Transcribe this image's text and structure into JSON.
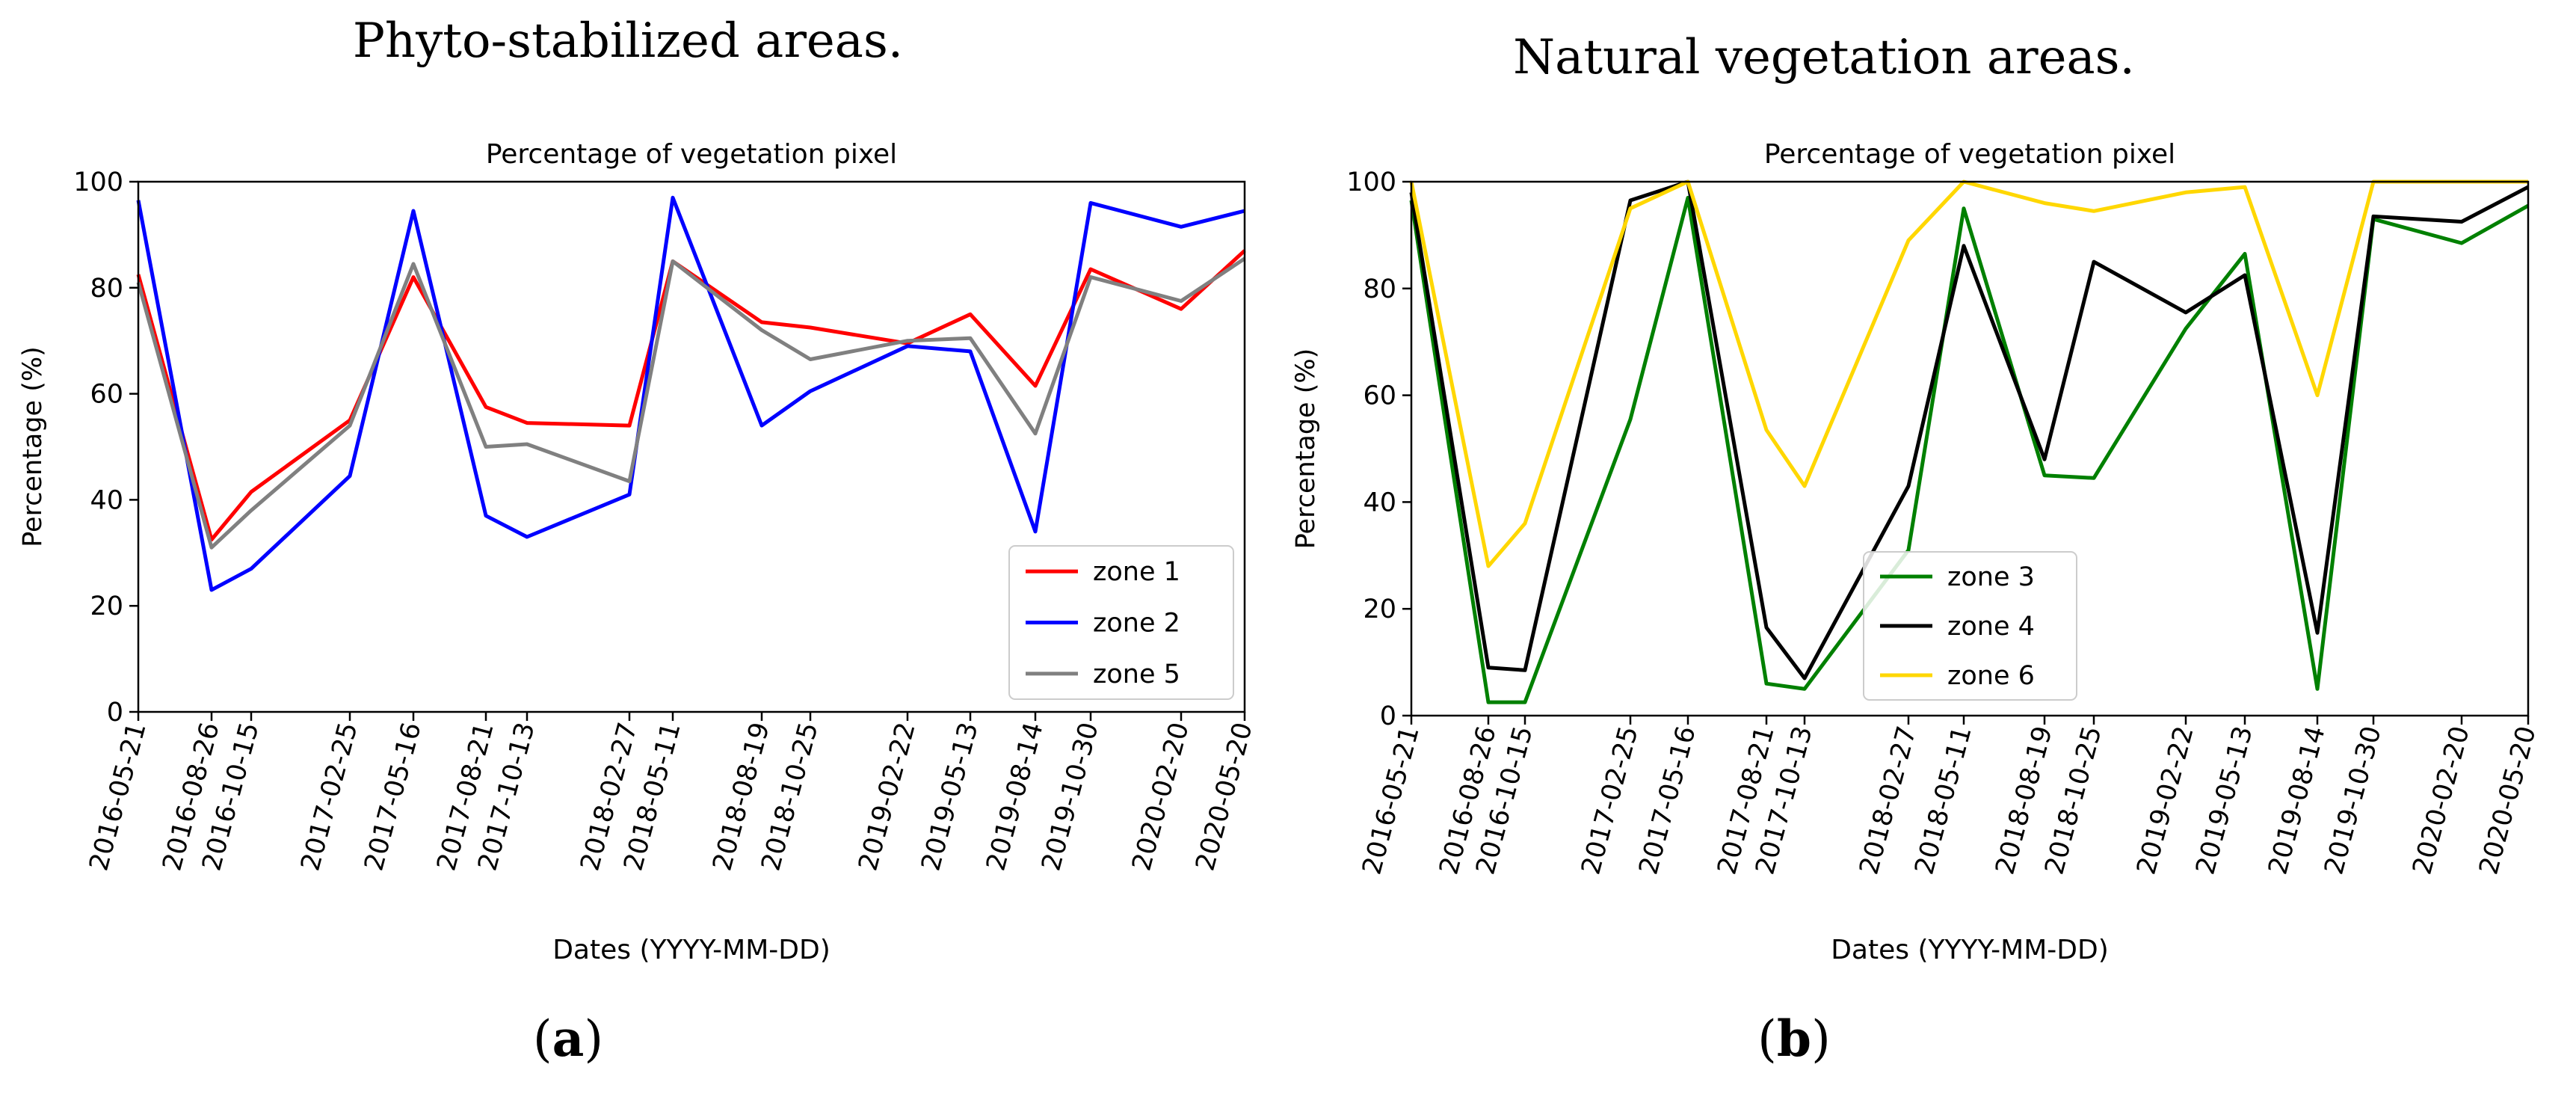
{
  "panels": [
    {
      "heading": "Phyto-stabilized areas.",
      "label_letter": "a"
    },
    {
      "heading": "Natural vegetation areas.",
      "label_letter": "b"
    }
  ],
  "chart_data": [
    {
      "type": "line",
      "title": "Percentage of vegetation pixel",
      "xlabel": "Dates (YYYY-MM-DD)",
      "ylabel": "Percentage (%)",
      "ylim": [
        0,
        100
      ],
      "yticks": [
        0,
        20,
        40,
        60,
        80,
        100
      ],
      "grid": false,
      "legend_position": "lower-right",
      "x": [
        "2016-05-21",
        "2016-08-26",
        "2016-10-15",
        "2017-02-25",
        "2017-05-16",
        "2017-08-21",
        "2017-10-13",
        "2018-02-27",
        "2018-05-11",
        "2018-08-19",
        "2018-10-25",
        "2019-02-22",
        "2019-05-13",
        "2019-08-14",
        "2019-10-30",
        "2020-02-20",
        "2020-05-20"
      ],
      "x_tick_labels": [
        "2016-05-21",
        "2016-08-26",
        "2016-10-15",
        "2017-02-25",
        "2017-05-16",
        "2017-08-21",
        "2017-10-13",
        "2018-02-27",
        "2018-05-11",
        "2018-08-19",
        "2018-10-25",
        "2019-02-22",
        "2019-05-13",
        "2019-08-14",
        "2019-10-30",
        "2020-02-20",
        "2020-05-20"
      ],
      "series": [
        {
          "name": "zone 1",
          "color": "#ff0000",
          "values": [
            82.5,
            32.5,
            41.5,
            55,
            82,
            57.5,
            54.5,
            54,
            85,
            73.5,
            72.5,
            69.5,
            75,
            61.5,
            83.5,
            76,
            87
          ]
        },
        {
          "name": "zone 2",
          "color": "#0000ff",
          "values": [
            96.5,
            23,
            27,
            44.5,
            94.5,
            37,
            33,
            41,
            97,
            54,
            60.5,
            69,
            68,
            34,
            96,
            91.5,
            94.5
          ]
        },
        {
          "name": "zone 5",
          "color": "#808080",
          "values": [
            81,
            31,
            38,
            54,
            84.5,
            50,
            50.5,
            43.5,
            85,
            72,
            66.5,
            70,
            70.5,
            52.5,
            82,
            77.5,
            85.5
          ]
        }
      ]
    },
    {
      "type": "line",
      "title": "Percentage of vegetation pixel",
      "xlabel": "Dates (YYYY-MM-DD)",
      "ylabel": "Percentage (%)",
      "ylim": [
        0,
        100
      ],
      "yticks": [
        0,
        20,
        40,
        60,
        80,
        100
      ],
      "grid": false,
      "legend_position": "lower-center",
      "x": [
        "2016-05-21",
        "2016-08-26",
        "2016-10-15",
        "2017-02-25",
        "2017-05-16",
        "2017-08-21",
        "2017-10-13",
        "2018-02-27",
        "2018-05-11",
        "2018-08-19",
        "2018-10-25",
        "2019-02-22",
        "2019-05-13",
        "2019-08-14",
        "2019-10-30",
        "2020-02-20",
        "2020-05-20"
      ],
      "x_tick_labels": [
        "2016-05-21",
        "2016-08-26",
        "2016-10-15",
        "2017-02-25",
        "2017-05-16",
        "2017-08-21",
        "2017-10-13",
        "2018-02-27",
        "2018-05-11",
        "2018-08-19",
        "2018-10-25",
        "2019-02-22",
        "2019-05-13",
        "2019-08-14",
        "2019-10-30",
        "2020-02-20",
        "2020-05-20"
      ],
      "series": [
        {
          "name": "zone 3",
          "color": "#008000",
          "values": [
            96.5,
            2.5,
            2.5,
            55.5,
            97,
            6,
            5,
            31,
            95,
            45,
            44.5,
            72.5,
            86.5,
            5,
            93,
            88.5,
            95.5
          ]
        },
        {
          "name": "zone 4",
          "color": "#000000",
          "values": [
            98,
            9,
            8.5,
            96.5,
            100,
            16.5,
            7,
            43,
            88,
            48,
            85,
            75.5,
            82.5,
            15.5,
            93.5,
            92.5,
            99
          ]
        },
        {
          "name": "zone 6",
          "color": "#ffd700",
          "values": [
            100,
            28,
            36,
            95,
            100,
            53.5,
            43,
            89,
            100,
            96,
            94.5,
            98,
            99,
            60,
            100,
            100,
            100
          ]
        }
      ]
    }
  ]
}
